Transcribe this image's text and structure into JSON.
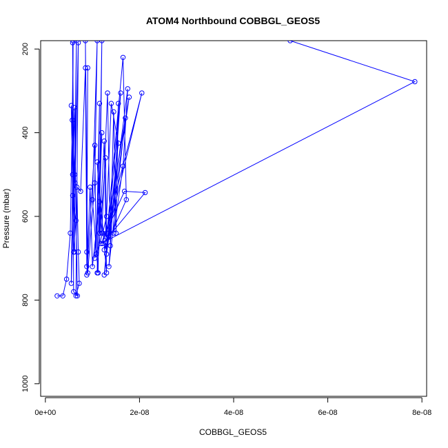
{
  "chart_data": {
    "type": "line",
    "title": "ATOM4 Northbound COBBGL_GEOS5",
    "xlabel": "COBBGL_GEOS5",
    "ylabel": "Pressure (mbar)",
    "x_ticks": [
      0,
      2e-08,
      4e-08,
      6e-08,
      8e-08
    ],
    "x_tick_labels": [
      "0e+00",
      "2e-08",
      "4e-08",
      "6e-08",
      "8e-08"
    ],
    "y_ticks": [
      200,
      400,
      600,
      800,
      1000
    ],
    "y_tick_labels": [
      "200",
      "400",
      "600",
      "800",
      "1000"
    ],
    "xlim": [
      -1e-09,
      8.1e-08
    ],
    "ylim": [
      1030,
      180
    ],
    "y_reversed": true,
    "grid": false,
    "line_color": "#0000ff",
    "marker": "open-circle",
    "series": [
      {
        "points": [
          [
            2.5e-09,
            790
          ],
          [
            3.7e-09,
            790
          ],
          [
            4.5e-09,
            750
          ],
          [
            5.3e-09,
            640
          ],
          [
            5.7e-09,
            370
          ],
          [
            5.9e-09,
            180
          ],
          [
            5.8e-09,
            500
          ],
          [
            5.5e-09,
            760
          ],
          [
            6.2e-09,
            500
          ],
          [
            6.6e-09,
            180
          ],
          [
            6.2e-09,
            685
          ],
          [
            5.8e-09,
            185
          ],
          [
            6e-09,
            780
          ],
          [
            6.8e-09,
            790
          ],
          [
            6.2e-09,
            340
          ],
          [
            5.8e-09,
            550
          ],
          [
            6.5e-09,
            610
          ],
          [
            6e-09,
            685
          ],
          [
            5.5e-09,
            335
          ],
          [
            6.3e-09,
            520
          ],
          [
            7e-09,
            185
          ],
          [
            6.5e-09,
            790
          ],
          [
            7.2e-09,
            760
          ],
          [
            7e-09,
            685
          ],
          [
            6.7e-09,
            530
          ],
          [
            7.5e-09,
            540
          ],
          [
            8.5e-09,
            245
          ],
          [
            8.8e-09,
            685
          ],
          [
            9e-09,
            245
          ],
          [
            8.8e-09,
            720
          ],
          [
            8.5e-09,
            180
          ],
          [
            9e-09,
            735
          ],
          [
            1.05e-08,
            520
          ],
          [
            1.1e-08,
            180
          ],
          [
            1e-08,
            560
          ],
          [
            1.12e-08,
            735
          ],
          [
            1.2e-08,
            180
          ],
          [
            1.15e-08,
            640
          ],
          [
            1.25e-08,
            420
          ],
          [
            1.3e-08,
            735
          ],
          [
            1.1e-08,
            470
          ],
          [
            1.2e-08,
            640
          ],
          [
            1.32e-08,
            305
          ],
          [
            1.38e-08,
            670
          ],
          [
            1.45e-08,
            350
          ],
          [
            1.5e-08,
            640
          ],
          [
            1.55e-08,
            330
          ],
          [
            1.45e-08,
            640
          ],
          [
            1.65e-08,
            480
          ],
          [
            1.75e-08,
            295
          ],
          [
            1.3e-08,
            690
          ],
          [
            1.78e-08,
            315
          ],
          [
            1.3e-08,
            640
          ],
          [
            1.7e-08,
            365
          ],
          [
            1.35e-08,
            720
          ],
          [
            1.6e-08,
            305
          ],
          [
            1.25e-08,
            740
          ],
          [
            1.55e-08,
            425
          ],
          [
            1.4e-08,
            330
          ],
          [
            1.3e-08,
            600
          ],
          [
            1.22e-08,
            640
          ],
          [
            1.05e-08,
            700
          ],
          [
            1.2e-08,
            400
          ],
          [
            1.15e-08,
            565
          ],
          [
            1e-08,
            720
          ],
          [
            9.5e-09,
            530
          ],
          [
            8.8e-09,
            740
          ],
          [
            1.05e-08,
            430
          ],
          [
            1.08e-08,
            690
          ],
          [
            1.15e-08,
            330
          ],
          [
            1.1e-08,
            735
          ],
          [
            1.28e-08,
            460
          ],
          [
            1.3e-08,
            650
          ],
          [
            1.65e-08,
            220
          ],
          [
            1.72e-08,
            560
          ],
          [
            1.25e-08,
            680
          ],
          [
            2.05e-08,
            305
          ],
          [
            1.22e-08,
            665
          ],
          [
            2.12e-08,
            543
          ],
          [
            1.68e-08,
            540
          ],
          [
            1.18e-08,
            665
          ],
          [
            7.85e-08,
            278
          ],
          [
            5.2e-08,
            180
          ]
        ]
      }
    ]
  }
}
